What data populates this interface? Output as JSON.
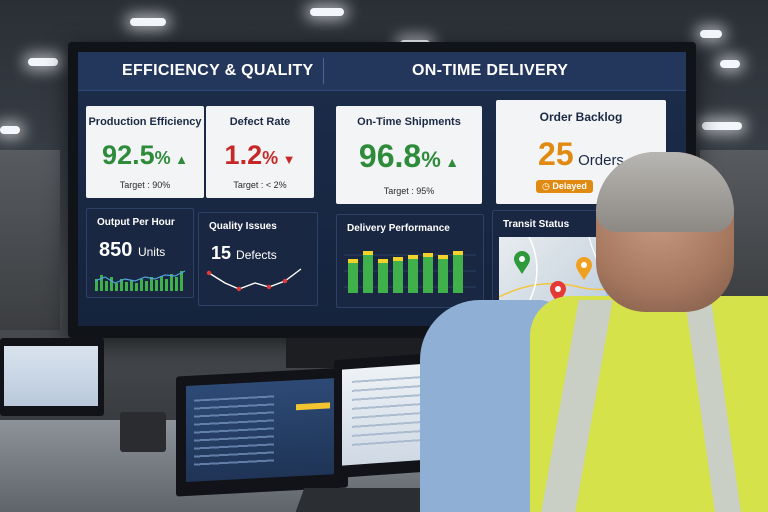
{
  "dashboard": {
    "left_header": "EFFICIENCY & QUALITY",
    "right_header": "ON-TIME DELIVERY",
    "production_efficiency": {
      "title": "Production Efficiency",
      "value": "92.5",
      "unit": "%",
      "target": "Target : 90%",
      "arrow": "▲"
    },
    "defect_rate": {
      "title": "Defect Rate",
      "value": "1.2",
      "unit": "%",
      "target": "Target : < 2%",
      "arrow": "▼"
    },
    "on_time_shipments": {
      "title": "On-Time Shipments",
      "value": "96.8",
      "unit": "%",
      "target": "Target : 95%",
      "arrow": "▲"
    },
    "order_backlog": {
      "title": "Order Backlog",
      "value": "25",
      "unit": "Orders",
      "badge": "Delayed"
    },
    "output_per_hour": {
      "title": "Output Per Hour",
      "value": "850",
      "unit": "Units"
    },
    "quality_issues": {
      "title": "Quality Issues",
      "value": "15",
      "unit": "Defects"
    },
    "delivery_performance": {
      "title": "Delivery Performance"
    },
    "transit_status": {
      "title": "Transit Status"
    }
  },
  "colors": {
    "green": "#2e8b3a",
    "red": "#c62828",
    "orange": "#e08a12",
    "navy": "#1c2d4b"
  },
  "icons": [
    "arrow-up-icon",
    "arrow-down-icon",
    "clock-icon",
    "map-pin-icon"
  ]
}
